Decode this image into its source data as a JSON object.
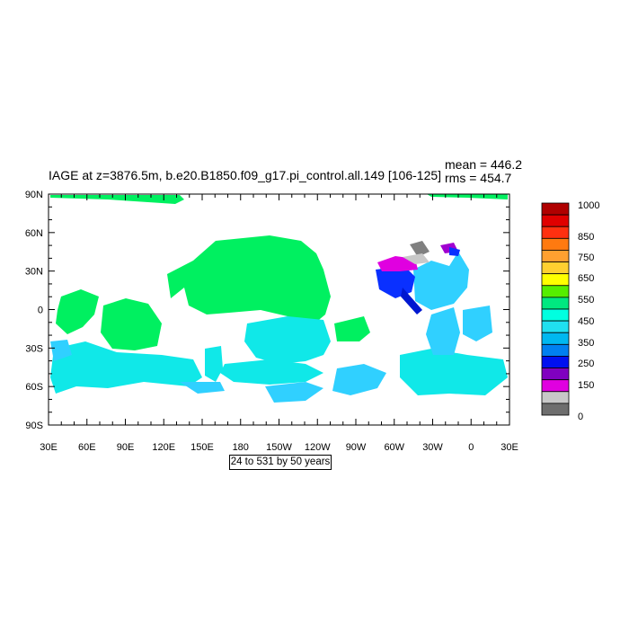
{
  "header": {
    "title": "IAGE at z=3876.5m, b.e20.B1850.f09_g17.pi_control.all.149 [106-125]",
    "mean": "mean = 446.2",
    "rms": "rms = 454.7"
  },
  "contour_info": "24 to 531 by 50 years",
  "axes": {
    "y_ticks": [
      "90N",
      "60N",
      "30N",
      "0",
      "30S",
      "60S",
      "90S"
    ],
    "x_ticks": [
      "30E",
      "60E",
      "90E",
      "120E",
      "150E",
      "180",
      "150W",
      "120W",
      "90W",
      "60W",
      "30W",
      "0",
      "30E"
    ]
  },
  "colorbar": {
    "labels": [
      "1000",
      "850",
      "750",
      "650",
      "550",
      "450",
      "350",
      "250",
      "150",
      "0"
    ],
    "colors": [
      "#b00000",
      "#e00000",
      "#ff3010",
      "#ff7a10",
      "#ffa030",
      "#ffd030",
      "#ffff00",
      "#55ee00",
      "#00e880",
      "#00ffe0",
      "#20e0f0",
      "#00b8f0",
      "#0080f0",
      "#0010f0",
      "#8000c0",
      "#e000e0",
      "#c8c8c8",
      "#6e6e6e"
    ]
  },
  "map_colors": {
    "green": "#00f060",
    "cyan": "#10e8e8",
    "lightblue": "#30d0ff",
    "blue": "#0a30ff",
    "deepblue": "#0018d0",
    "purple": "#a000d0",
    "magenta": "#e000e0",
    "gray": "#808080",
    "lightgray": "#c8c8c8"
  }
}
